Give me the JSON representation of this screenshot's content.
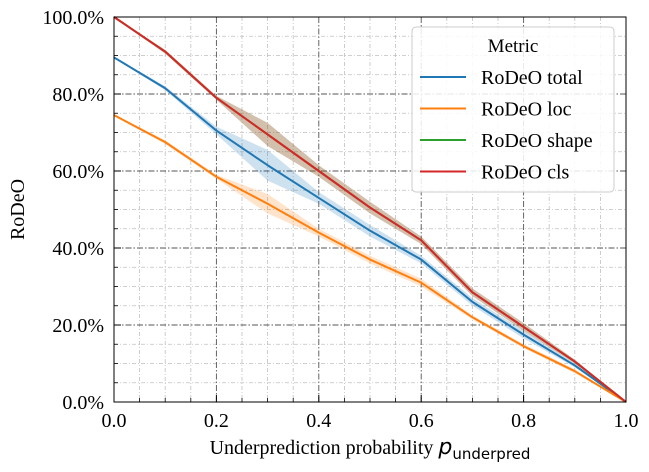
{
  "chart_data": {
    "type": "line",
    "xlabel": "Underprediction probability",
    "xlabel_symbol": "p",
    "xlabel_subscript": "underpred",
    "ylabel": "RoDeO",
    "xlim": [
      0.0,
      1.0
    ],
    "ylim": [
      0.0,
      1.0
    ],
    "x_ticks": [
      "0.0",
      "0.2",
      "0.4",
      "0.6",
      "0.8",
      "1.0"
    ],
    "y_ticks": [
      "0.0%",
      "20.0%",
      "40.0%",
      "60.0%",
      "80.0%",
      "100.0%"
    ],
    "grid": true,
    "legend": {
      "title": "Metric",
      "placement": "top-right"
    },
    "x": [
      0.0,
      0.1,
      0.2,
      0.3,
      0.4,
      0.5,
      0.6,
      0.7,
      0.8,
      0.9,
      1.0
    ],
    "series": [
      {
        "name": "RoDeO total",
        "color": "#1f77b4",
        "values": [
          0.895,
          0.815,
          0.705,
          0.615,
          0.53,
          0.445,
          0.37,
          0.26,
          0.175,
          0.095,
          0.0
        ],
        "lower": [
          0.893,
          0.81,
          0.695,
          0.575,
          0.515,
          0.43,
          0.36,
          0.25,
          0.165,
          0.09,
          0.0
        ],
        "upper": [
          0.897,
          0.82,
          0.715,
          0.655,
          0.545,
          0.46,
          0.38,
          0.27,
          0.185,
          0.1,
          0.0
        ]
      },
      {
        "name": "RoDeO loc",
        "color": "#ff7f0e",
        "values": [
          0.745,
          0.675,
          0.585,
          0.515,
          0.44,
          0.37,
          0.31,
          0.22,
          0.145,
          0.08,
          0.0
        ],
        "lower": [
          0.743,
          0.67,
          0.58,
          0.49,
          0.43,
          0.36,
          0.3,
          0.215,
          0.14,
          0.075,
          0.0
        ],
        "upper": [
          0.747,
          0.68,
          0.59,
          0.54,
          0.45,
          0.38,
          0.32,
          0.225,
          0.15,
          0.085,
          0.0
        ]
      },
      {
        "name": "RoDeO shape",
        "color": "#2ca02c",
        "values": [
          1.0,
          0.91,
          0.79,
          0.695,
          0.6,
          0.505,
          0.42,
          0.285,
          0.195,
          0.105,
          0.0
        ],
        "lower": [
          0.998,
          0.905,
          0.785,
          0.665,
          0.585,
          0.49,
          0.41,
          0.275,
          0.185,
          0.1,
          0.0
        ],
        "upper": [
          1.0,
          0.915,
          0.795,
          0.725,
          0.615,
          0.52,
          0.43,
          0.295,
          0.205,
          0.11,
          0.0
        ]
      },
      {
        "name": "RoDeO cls",
        "color": "#d62728",
        "values": [
          1.0,
          0.91,
          0.79,
          0.695,
          0.6,
          0.505,
          0.42,
          0.285,
          0.195,
          0.105,
          0.0
        ],
        "lower": [
          0.998,
          0.905,
          0.785,
          0.665,
          0.585,
          0.49,
          0.41,
          0.275,
          0.185,
          0.1,
          0.0
        ],
        "upper": [
          1.0,
          0.915,
          0.795,
          0.725,
          0.615,
          0.52,
          0.43,
          0.295,
          0.205,
          0.11,
          0.0
        ]
      }
    ]
  }
}
